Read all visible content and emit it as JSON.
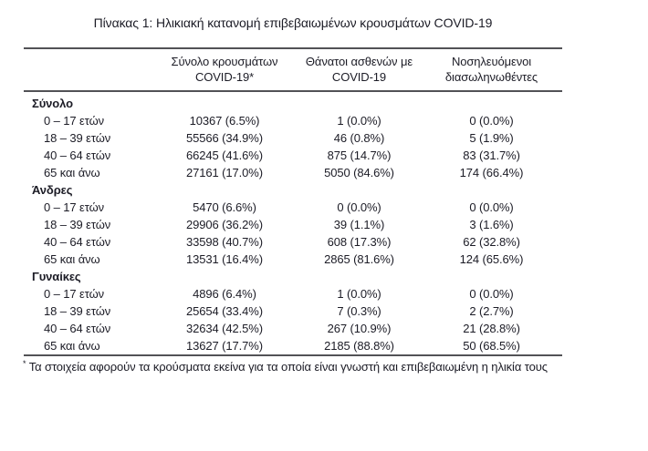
{
  "page": {
    "title": "Πίνακας 1: Ηλικιακή κατανομή επιβεβαιωμένων κρουσμάτων COVID-19"
  },
  "table": {
    "columns": {
      "cases": {
        "line1": "Σύνολο κρουσμάτων",
        "line2": "COVID-19*"
      },
      "deaths": {
        "line1": "Θάνατοι ασθενών με",
        "line2": "COVID-19"
      },
      "intubated": {
        "line1": "Νοσηλευόμενοι",
        "line2": "διασωληνωθέντες"
      }
    },
    "sections": [
      {
        "label": "Σύνολο",
        "rows": [
          {
            "age": "0 – 17 ετών",
            "cases": "10367 (6.5%)",
            "deaths": "1 (0.0%)",
            "intubated": "0 (0.0%)"
          },
          {
            "age": "18 – 39 ετών",
            "cases": "55566 (34.9%)",
            "deaths": "46 (0.8%)",
            "intubated": "5 (1.9%)"
          },
          {
            "age": "40 – 64 ετών",
            "cases": "66245 (41.6%)",
            "deaths": "875 (14.7%)",
            "intubated": "83 (31.7%)"
          },
          {
            "age": "65 και άνω",
            "cases": "27161 (17.0%)",
            "deaths": "5050 (84.6%)",
            "intubated": "174 (66.4%)"
          }
        ]
      },
      {
        "label": "Άνδρες",
        "rows": [
          {
            "age": "0 – 17 ετών",
            "cases": "5470 (6.6%)",
            "deaths": "0 (0.0%)",
            "intubated": "0 (0.0%)"
          },
          {
            "age": "18 – 39 ετών",
            "cases": "29906 (36.2%)",
            "deaths": "39 (1.1%)",
            "intubated": "3 (1.6%)"
          },
          {
            "age": "40 – 64 ετών",
            "cases": "33598 (40.7%)",
            "deaths": "608 (17.3%)",
            "intubated": "62 (32.8%)"
          },
          {
            "age": "65 και άνω",
            "cases": "13531 (16.4%)",
            "deaths": "2865 (81.6%)",
            "intubated": "124 (65.6%)"
          }
        ]
      },
      {
        "label": "Γυναίκες",
        "rows": [
          {
            "age": "0 – 17 ετών",
            "cases": "4896 (6.4%)",
            "deaths": "1 (0.0%)",
            "intubated": "0 (0.0%)"
          },
          {
            "age": "18 – 39 ετών",
            "cases": "25654 (33.4%)",
            "deaths": "7 (0.3%)",
            "intubated": "2 (2.7%)"
          },
          {
            "age": "40 – 64 ετών",
            "cases": "32634 (42.5%)",
            "deaths": "267 (10.9%)",
            "intubated": "21 (28.8%)"
          },
          {
            "age": "65 και άνω",
            "cases": "13627 (17.7%)",
            "deaths": "2185 (88.8%)",
            "intubated": "50 (68.5%)"
          }
        ]
      }
    ],
    "footnote": {
      "marker": "*",
      "text": "Τα στοιχεία αφορούν τα κρούσματα εκείνα για τα οποία είναι γνωστή και επιβεβαιωμένη η ηλικία τους"
    }
  }
}
